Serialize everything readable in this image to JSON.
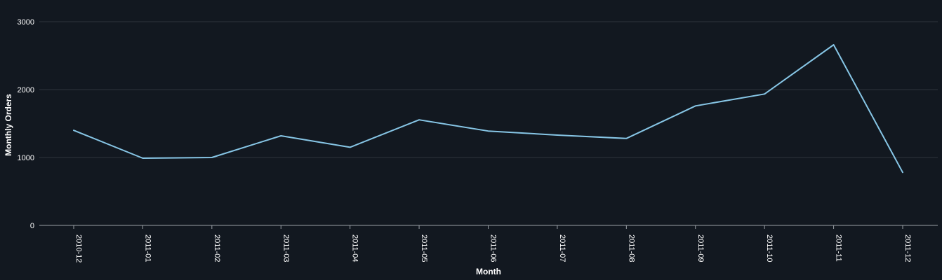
{
  "chart_data": {
    "type": "line",
    "title": "",
    "xlabel": "Month",
    "ylabel": "Monthly Orders",
    "categories": [
      "2010-12",
      "2011-01",
      "2011-02",
      "2011-03",
      "2011-04",
      "2011-05",
      "2011-06",
      "2011-07",
      "2011-08",
      "2011-09",
      "2011-10",
      "2011-11",
      "2011-12"
    ],
    "series": [
      {
        "values": [
          1400,
          990,
          1000,
          1320,
          1150,
          1555,
          1390,
          1330,
          1280,
          1760,
          1935,
          2660,
          780
        ],
        "color": "#87c6e6"
      }
    ],
    "ylim": [
      0,
      3000
    ],
    "yticks": [
      0,
      1000,
      2000,
      3000
    ],
    "grid": true,
    "legend": "none",
    "background": "#121820"
  }
}
